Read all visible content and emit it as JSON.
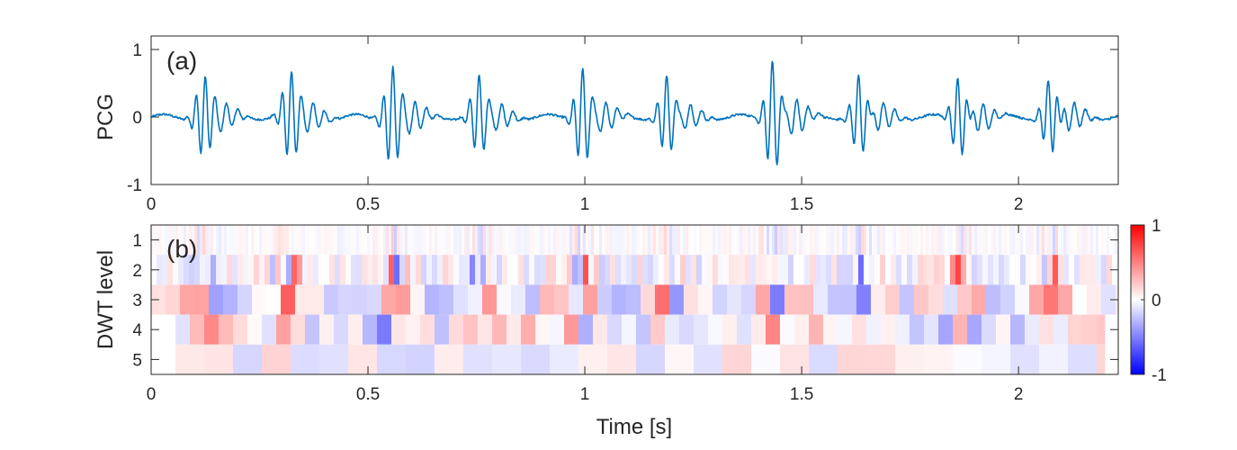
{
  "chart_data": [
    {
      "type": "line",
      "panel_label": "(a)",
      "ylabel": "PCG",
      "xlim": [
        0,
        2.23
      ],
      "ylim": [
        -1,
        1.2
      ],
      "xticks": [
        0,
        0.5,
        1,
        1.5,
        2
      ],
      "xtick_labels": [
        "0",
        "0.5",
        "1",
        "1.5",
        "2"
      ],
      "yticks": [
        -1,
        0,
        1
      ],
      "ytick_labels": [
        "-1",
        "0",
        "1"
      ],
      "line_color": "#0072BD",
      "burst_events": [
        {
          "t": 0.12,
          "amp": 0.58
        },
        {
          "t": 0.32,
          "amp": 0.62
        },
        {
          "t": 0.555,
          "amp": 0.68
        },
        {
          "t": 0.755,
          "amp": 0.55
        },
        {
          "t": 0.995,
          "amp": 0.66
        },
        {
          "t": 1.19,
          "amp": 0.56
        },
        {
          "t": 1.435,
          "amp": 0.8
        },
        {
          "t": 1.635,
          "amp": 0.6
        },
        {
          "t": 1.865,
          "amp": 0.62
        },
        {
          "t": 2.075,
          "amp": 0.6
        }
      ]
    },
    {
      "type": "heatmap",
      "panel_label": "(b)",
      "xlabel": "Time [s]",
      "ylabel": "DWT level",
      "xlim": [
        0,
        2.23
      ],
      "xticks": [
        0,
        0.5,
        1,
        1.5,
        2
      ],
      "xtick_labels": [
        "0",
        "0.5",
        "1",
        "1.5",
        "2"
      ],
      "levels": [
        1,
        2,
        3,
        4,
        5
      ],
      "ytick_labels": [
        "1",
        "2",
        "3",
        "4",
        "5"
      ],
      "colorbar": {
        "range": [
          -1,
          1
        ],
        "ticks": [
          -1,
          0,
          1
        ],
        "tick_labels": [
          "-1",
          "0",
          "1"
        ],
        "colors": {
          "low": "#0000FF",
          "mid": "#FFFFFF",
          "high": "#FF0000"
        }
      }
    }
  ]
}
